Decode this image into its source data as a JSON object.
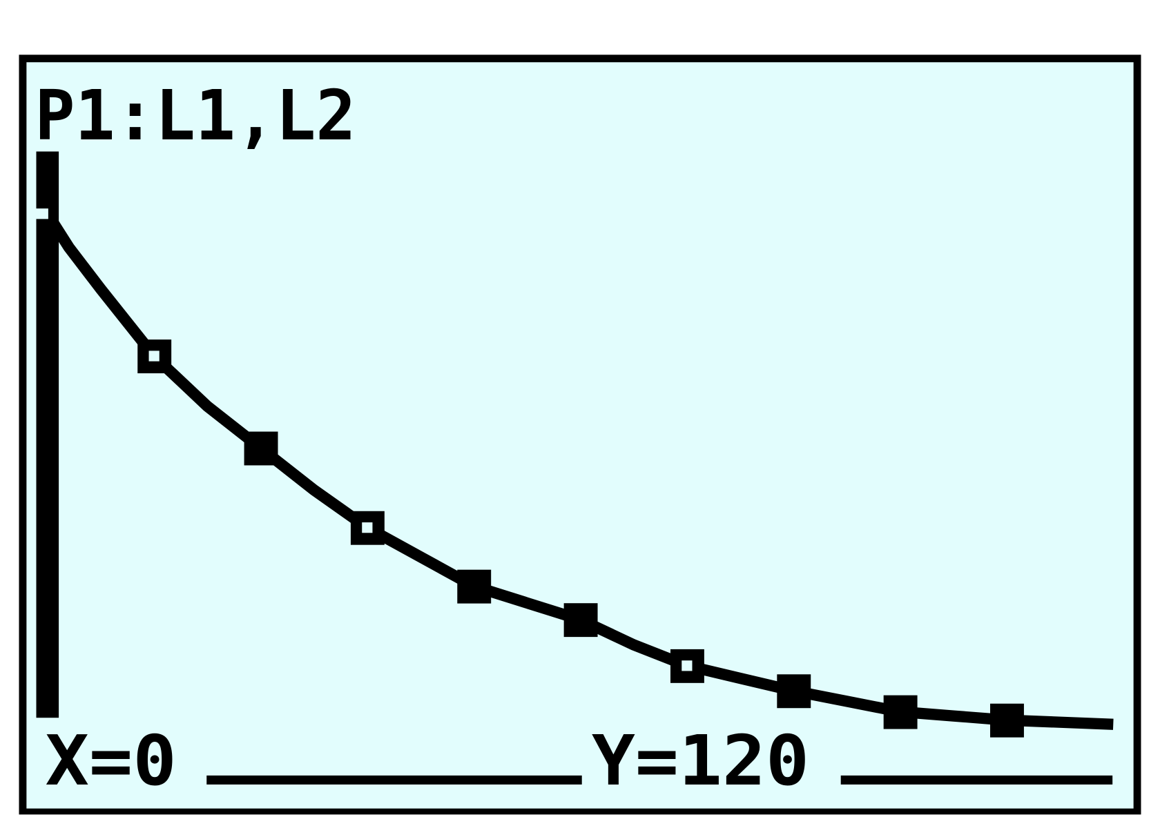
{
  "screen": {
    "plot_label": "P1:L1,L2",
    "trace_x": "X=0",
    "trace_y": "Y=120",
    "background_color": "#e2fdfd",
    "ink_color": "#000000"
  },
  "chart_data": {
    "type": "scatter",
    "title": "",
    "xlabel": "",
    "ylabel": "",
    "xlim": [
      -0.1,
      10.2
    ],
    "ylim": [
      -3.6,
      135
    ],
    "grid": false,
    "legend": "none",
    "trace_cursor": {
      "x": 0,
      "y": 120
    },
    "points": [
      {
        "x": 1,
        "y": 86,
        "mark": "hollow-square"
      },
      {
        "x": 2,
        "y": 64,
        "mark": "filled-square"
      },
      {
        "x": 3,
        "y": 45,
        "mark": "hollow-square"
      },
      {
        "x": 4,
        "y": 31,
        "mark": "filled-square"
      },
      {
        "x": 5,
        "y": 23,
        "mark": "filled-square"
      },
      {
        "x": 6,
        "y": 12,
        "mark": "hollow-square"
      },
      {
        "x": 7,
        "y": 6,
        "mark": "filled-square"
      },
      {
        "x": 8,
        "y": 1,
        "mark": "filled-square"
      },
      {
        "x": 9,
        "y": -1,
        "mark": "filled-square"
      }
    ],
    "curve": [
      [
        0,
        120
      ],
      [
        0.2,
        112
      ],
      [
        0.5,
        102
      ],
      [
        1,
        86
      ],
      [
        1.5,
        74
      ],
      [
        2,
        64
      ],
      [
        2.5,
        54
      ],
      [
        3,
        45
      ],
      [
        3.5,
        38
      ],
      [
        4,
        31
      ],
      [
        4.5,
        27
      ],
      [
        5,
        23
      ],
      [
        5.5,
        17
      ],
      [
        6,
        12
      ],
      [
        6.5,
        9
      ],
      [
        7,
        6
      ],
      [
        7.5,
        3.5
      ],
      [
        8,
        1
      ],
      [
        8.5,
        0
      ],
      [
        9,
        -1
      ],
      [
        10,
        -2
      ]
    ]
  }
}
